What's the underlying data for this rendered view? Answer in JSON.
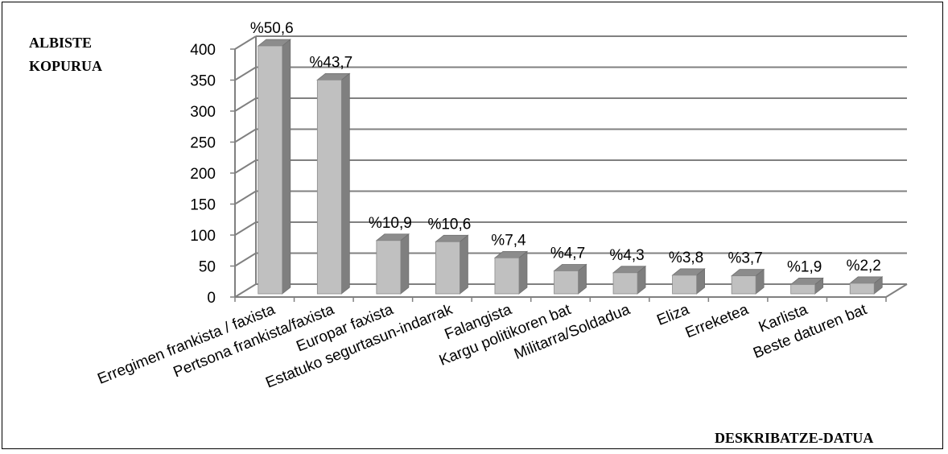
{
  "chart_data": {
    "type": "bar",
    "ylabel": "Albiste kopurua",
    "xlabel": "Deskribatze-datua",
    "ylim": [
      0,
      400
    ],
    "yticks": [
      0,
      50,
      100,
      150,
      200,
      250,
      300,
      350,
      400
    ],
    "categories": [
      "Erregimen frankista / faxista",
      "Pertsona frankista/faxista",
      "Europar faxista",
      "Estatuko segurtasun-indarrak",
      "Falangista",
      "Kargu politikoren bat",
      "Militarra/Soldadua",
      "Eliza",
      "Erreketea",
      "Karlista",
      "Beste daturen bat"
    ],
    "values": [
      400,
      345,
      86,
      84,
      58,
      37,
      34,
      30,
      29,
      15,
      17
    ],
    "data_labels": [
      "%50,6",
      "%43,7",
      "%10,9",
      "%10,6",
      "%7,4",
      "%4,7",
      "%4,3",
      "%3,8",
      "%3,7",
      "%1,9",
      "%2,2"
    ],
    "grid": true,
    "legend": "none",
    "colors": {
      "bar_front": "#c0c0c0",
      "bar_side": "#7f7f7f",
      "bar_top": "#8c8c8c",
      "grid": "#808080"
    }
  }
}
